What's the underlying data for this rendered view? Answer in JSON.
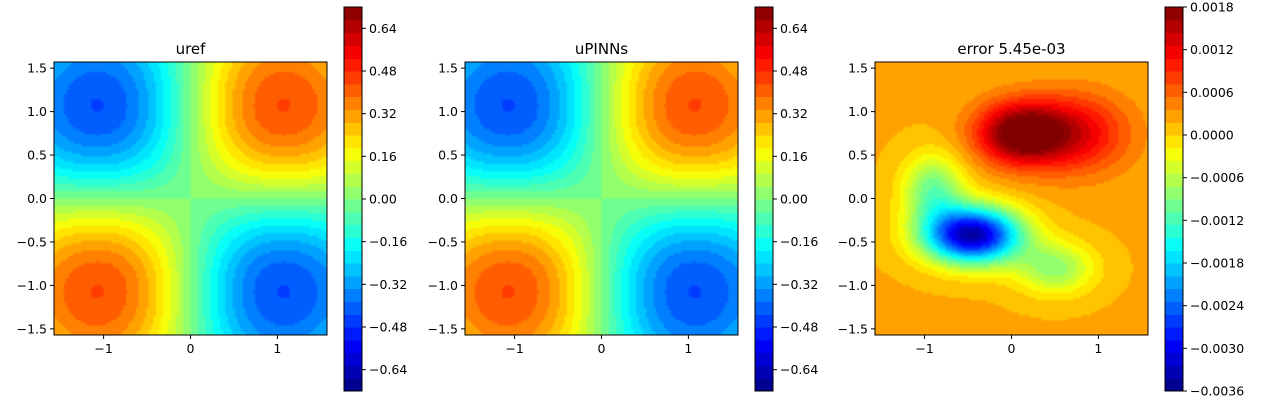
{
  "chart_data": [
    {
      "type": "heatmap",
      "title": "uref",
      "function": "sin(x) * sin(y) * exp(-(x^2 + y^2)/4)",
      "x_range": [
        -1.5708,
        1.5708
      ],
      "y_range": [
        -1.5708,
        1.5708
      ],
      "x_ticks": [
        -1,
        0,
        1
      ],
      "x_tick_labels": [
        "−1",
        "0",
        "1"
      ],
      "y_ticks": [
        -1.5,
        -1.0,
        -0.5,
        0.0,
        0.5,
        1.0,
        1.5
      ],
      "y_tick_labels": [
        "−1.5",
        "−1.0",
        "−0.5",
        "0.0",
        "0.5",
        "1.0",
        "1.5"
      ],
      "colormap": "jet",
      "value_range": [
        -0.72,
        0.72
      ],
      "colorbar_ticks": [
        -0.64,
        -0.48,
        -0.32,
        -0.16,
        0.0,
        0.16,
        0.32,
        0.48,
        0.64
      ],
      "colorbar_tick_labels": [
        "−0.64",
        "−0.48",
        "−0.32",
        "−0.16",
        "0.00",
        "0.16",
        "0.32",
        "0.48",
        "0.64"
      ]
    },
    {
      "type": "heatmap",
      "title": "uPINNs",
      "function": "sin(x) * sin(y) * exp(-(x^2 + y^2)/4)",
      "x_range": [
        -1.5708,
        1.5708
      ],
      "y_range": [
        -1.5708,
        1.5708
      ],
      "x_ticks": [
        -1,
        0,
        1
      ],
      "x_tick_labels": [
        "−1",
        "0",
        "1"
      ],
      "y_ticks": [
        -1.5,
        -1.0,
        -0.5,
        0.0,
        0.5,
        1.0,
        1.5
      ],
      "y_tick_labels": [
        "−1.5",
        "−1.0",
        "−0.5",
        "0.0",
        "0.5",
        "1.0",
        "1.5"
      ],
      "colormap": "jet",
      "value_range": [
        -0.72,
        0.72
      ],
      "colorbar_ticks": [
        -0.64,
        -0.48,
        -0.32,
        -0.16,
        0.0,
        0.16,
        0.32,
        0.48,
        0.64
      ],
      "colorbar_tick_labels": [
        "−0.64",
        "−0.48",
        "−0.32",
        "−0.16",
        "0.00",
        "0.16",
        "0.32",
        "0.48",
        "0.64"
      ]
    },
    {
      "type": "heatmap",
      "title": "error 5.45e-03",
      "function": "error field: positive lobe upper-right (max ≈ 0.0018 near x=0.1, y=0.75), negative lobe lower-left (min ≈ -0.0036 near x=-0.5, y=-0.4)",
      "x_range": [
        -1.5708,
        1.5708
      ],
      "y_range": [
        -1.5708,
        1.5708
      ],
      "x_ticks": [
        -1,
        0,
        1
      ],
      "x_tick_labels": [
        "−1",
        "0",
        "1"
      ],
      "y_ticks": [
        -1.5,
        -1.0,
        -0.5,
        0.0,
        0.5,
        1.0,
        1.5
      ],
      "y_tick_labels": [
        "−1.5",
        "−1.0",
        "−0.5",
        "0.0",
        "0.5",
        "1.0",
        "1.5"
      ],
      "colormap": "jet",
      "value_range": [
        -0.0036,
        0.0018
      ],
      "colorbar_ticks": [
        -0.0036,
        -0.003,
        -0.0024,
        -0.0018,
        -0.0012,
        -0.0006,
        0.0,
        0.0006,
        0.0012,
        0.0018
      ],
      "colorbar_tick_labels": [
        "−0.0036",
        "−0.0030",
        "−0.0024",
        "−0.0018",
        "−0.0012",
        "−0.0006",
        "0.0000",
        "0.0006",
        "0.0012",
        "0.0018"
      ]
    }
  ]
}
